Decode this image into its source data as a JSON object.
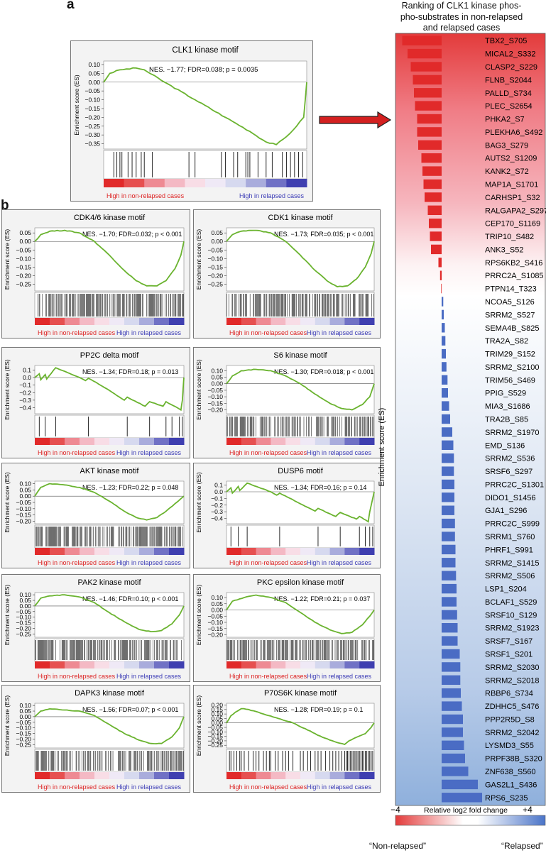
{
  "panel_labels": {
    "a": "a",
    "b": "b"
  },
  "gsea_common": {
    "ylabel": "Enrichment score (ES)",
    "left_label": "High in non-relapsed cases",
    "right_label": "High in relapsed cases"
  },
  "ranking": {
    "title_lines": [
      "Ranking of CLK1 kinase phos-",
      "pho-substrates in non-relapsed",
      "and relapsed cases"
    ],
    "ylabel": "Enrichment score (ES)",
    "scale_min": "−4",
    "scale_max": "+4",
    "scale_label": "Relative log2 fold change",
    "bottom_left": "“Non-relapsed”",
    "bottom_right": "“Relapsed”"
  },
  "colors": {
    "curve": "#6ab32f",
    "red": "#e12a2a",
    "blue": "#4a6cc4",
    "arrow": "#d42020"
  },
  "chart_data": [
    {
      "type": "line",
      "title": "CLK1 kinase motif",
      "annotation": "NES. −1.77; FDR=0.038; p = 0.0035",
      "nes": "NES. −1.77",
      "fdr": "FDR=0.038",
      "p": "0.0035",
      "p_rel": "=",
      "ylim": [
        -0.38,
        0.12
      ],
      "yticks": [
        "0.10",
        "0.05",
        "0.00",
        "−0.05",
        "−0.10",
        "−0.15",
        "−0.20",
        "−0.25",
        "−0.30",
        "−0.35"
      ],
      "ytick_values": [
        0.1,
        0.05,
        0,
        -0.05,
        -0.1,
        -0.15,
        -0.2,
        -0.25,
        -0.3,
        -0.35
      ],
      "curve": [
        [
          0,
          0
        ],
        [
          0.03,
          0.05
        ],
        [
          0.08,
          0.07
        ],
        [
          0.16,
          0.08
        ],
        [
          0.2,
          0.07
        ],
        [
          0.3,
          0
        ],
        [
          0.45,
          -0.1
        ],
        [
          0.6,
          -0.2
        ],
        [
          0.72,
          -0.28
        ],
        [
          0.8,
          -0.34
        ],
        [
          0.85,
          -0.355
        ],
        [
          0.9,
          -0.31
        ],
        [
          0.95,
          -0.25
        ],
        [
          0.985,
          -0.2
        ],
        [
          1,
          0
        ]
      ],
      "hits": [
        0.05,
        0.065,
        0.08,
        0.09,
        0.12,
        0.14,
        0.16,
        0.185,
        0.2,
        0.24,
        0.42,
        0.45,
        0.58,
        0.6,
        0.64,
        0.66,
        0.7,
        0.71,
        0.72,
        0.76,
        0.8,
        0.83,
        0.88,
        0.9,
        0.92,
        0.94,
        0.96,
        0.98
      ]
    },
    {
      "type": "line",
      "title": "CDK4/6 kinase motif",
      "annotation": "NES. −1.70; FDR=0.032; p < 0.001",
      "nes": "NES. −1.70",
      "fdr": "FDR=0.032",
      "p": "0.001",
      "p_rel": "<",
      "ylim": [
        -0.29,
        0.08
      ],
      "yticks": [
        "0.05",
        "0.00",
        "−0.05",
        "−0.10",
        "−0.15",
        "−0.20",
        "−0.25"
      ],
      "ytick_values": [
        0.05,
        0,
        -0.05,
        -0.1,
        -0.15,
        -0.2,
        -0.25
      ],
      "curve": [
        [
          0,
          0
        ],
        [
          0.04,
          0.04
        ],
        [
          0.1,
          0.06
        ],
        [
          0.2,
          0.065
        ],
        [
          0.3,
          0.05
        ],
        [
          0.4,
          0
        ],
        [
          0.5,
          -0.08
        ],
        [
          0.6,
          -0.17
        ],
        [
          0.68,
          -0.23
        ],
        [
          0.75,
          -0.26
        ],
        [
          0.82,
          -0.26
        ],
        [
          0.88,
          -0.23
        ],
        [
          0.94,
          -0.16
        ],
        [
          0.98,
          -0.08
        ],
        [
          1,
          0
        ]
      ],
      "hits_density": "dense"
    },
    {
      "type": "line",
      "title": "CDK1 kinase motif",
      "annotation": "NES. −1.73; FDR=0.035; p < 0.001",
      "nes": "NES. −1.73",
      "fdr": "FDR=0.035",
      "p": "0.001",
      "p_rel": "<",
      "ylim": [
        -0.29,
        0.08
      ],
      "yticks": [
        "0.05",
        "0.00",
        "−0.05",
        "−0.10",
        "−0.15",
        "−0.20",
        "−0.25"
      ],
      "ytick_values": [
        0.05,
        0,
        -0.05,
        -0.1,
        -0.15,
        -0.2,
        -0.25
      ],
      "curve": [
        [
          0,
          0
        ],
        [
          0.04,
          0.04
        ],
        [
          0.1,
          0.06
        ],
        [
          0.2,
          0.065
        ],
        [
          0.3,
          0.05
        ],
        [
          0.4,
          0
        ],
        [
          0.5,
          -0.08
        ],
        [
          0.6,
          -0.17
        ],
        [
          0.68,
          -0.23
        ],
        [
          0.75,
          -0.265
        ],
        [
          0.82,
          -0.26
        ],
        [
          0.88,
          -0.22
        ],
        [
          0.94,
          -0.15
        ],
        [
          0.98,
          -0.07
        ],
        [
          1,
          0
        ]
      ],
      "hits_density": "dense"
    },
    {
      "type": "line",
      "title": "PP2C delta  motif",
      "annotation": "NES. −1.34; FDR=0.18; p = 0.013",
      "nes": "NES. −1.34",
      "fdr": "FDR=0.18",
      "p": "0.013",
      "p_rel": "=",
      "ylim": [
        -0.48,
        0.16
      ],
      "yticks": [
        "0.1",
        "0.0",
        "−0.1",
        "−0.2",
        "−0.3",
        "−0.4"
      ],
      "ytick_values": [
        0.1,
        0,
        -0.1,
        -0.2,
        -0.3,
        -0.4
      ],
      "curve": [
        [
          0,
          0
        ],
        [
          0.03,
          0.05
        ],
        [
          0.04,
          -0.03
        ],
        [
          0.07,
          0.04
        ],
        [
          0.08,
          -0.02
        ],
        [
          0.14,
          0.13
        ],
        [
          0.3,
          0
        ],
        [
          0.34,
          -0.04
        ],
        [
          0.36,
          -0.01
        ],
        [
          0.5,
          -0.17
        ],
        [
          0.6,
          -0.3
        ],
        [
          0.62,
          -0.26
        ],
        [
          0.74,
          -0.38
        ],
        [
          0.77,
          -0.32
        ],
        [
          0.86,
          -0.38
        ],
        [
          0.88,
          -0.32
        ],
        [
          0.98,
          -0.43
        ],
        [
          0.99,
          -0.3
        ],
        [
          1,
          0
        ]
      ],
      "hits": [
        0.03,
        0.07,
        0.14,
        0.36,
        0.62,
        0.77,
        0.88,
        0.92,
        0.97,
        0.99
      ]
    },
    {
      "type": "line",
      "title": "S6 kinase motif",
      "annotation": "NES. −1.30; FDR=0.018; p < 0.001",
      "nes": "NES. −1.30",
      "fdr": "FDR=0.018",
      "p": "0.001",
      "p_rel": "<",
      "ylim": [
        -0.23,
        0.14
      ],
      "yticks": [
        "0.10",
        "0.05",
        "0.00",
        "−0.05",
        "−0.10",
        "−0.15",
        "−0.20"
      ],
      "ytick_values": [
        0.1,
        0.05,
        0,
        -0.05,
        -0.1,
        -0.15,
        -0.2
      ],
      "curve": [
        [
          0,
          0
        ],
        [
          0.04,
          0.06
        ],
        [
          0.1,
          0.1
        ],
        [
          0.2,
          0.11
        ],
        [
          0.3,
          0.1
        ],
        [
          0.4,
          0.06
        ],
        [
          0.5,
          0
        ],
        [
          0.6,
          -0.08
        ],
        [
          0.7,
          -0.15
        ],
        [
          0.78,
          -0.19
        ],
        [
          0.85,
          -0.2
        ],
        [
          0.92,
          -0.16
        ],
        [
          0.97,
          -0.1
        ],
        [
          1,
          0
        ]
      ],
      "hits_density": "dense"
    },
    {
      "type": "line",
      "title": "AKT kinase motif",
      "annotation": "NES. −1.23; FDR=0.22; p = 0.048",
      "nes": "NES. −1.23",
      "fdr": "FDR=0.22",
      "p": "0.048",
      "p_rel": "=",
      "ylim": [
        -0.22,
        0.12
      ],
      "yticks": [
        "0.10",
        "0.05",
        "0.00",
        "−0.05",
        "−0.10",
        "−0.15",
        "−0.20"
      ],
      "ytick_values": [
        0.1,
        0.05,
        0,
        -0.05,
        -0.1,
        -0.15,
        -0.2
      ],
      "curve": [
        [
          0,
          0
        ],
        [
          0.04,
          0.07
        ],
        [
          0.1,
          0.1
        ],
        [
          0.2,
          0.09
        ],
        [
          0.3,
          0.07
        ],
        [
          0.4,
          0.03
        ],
        [
          0.5,
          -0.04
        ],
        [
          0.6,
          -0.12
        ],
        [
          0.68,
          -0.17
        ],
        [
          0.75,
          -0.19
        ],
        [
          0.82,
          -0.17
        ],
        [
          0.88,
          -0.12
        ],
        [
          0.94,
          -0.06
        ],
        [
          0.98,
          -0.02
        ],
        [
          1,
          0
        ]
      ],
      "hits_density": "dense"
    },
    {
      "type": "line",
      "title": "DUSP6 motif",
      "annotation": "NES. −1.34; FDR=0.16; p = 0.14",
      "nes": "NES. −1.34",
      "fdr": "FDR=0.16",
      "p": "0.14",
      "p_rel": "=",
      "ylim": [
        -0.48,
        0.16
      ],
      "yticks": [
        "0.1",
        "0.0",
        "−0.1",
        "−0.2",
        "−0.3",
        "−0.4"
      ],
      "ytick_values": [
        0.1,
        0,
        -0.1,
        -0.2,
        -0.3,
        -0.4
      ],
      "curve": [
        [
          0,
          0
        ],
        [
          0.03,
          0.06
        ],
        [
          0.04,
          -0.02
        ],
        [
          0.08,
          0.08
        ],
        [
          0.09,
          0.02
        ],
        [
          0.14,
          0.13
        ],
        [
          0.3,
          0
        ],
        [
          0.34,
          -0.05
        ],
        [
          0.36,
          -0.02
        ],
        [
          0.5,
          -0.18
        ],
        [
          0.6,
          -0.29
        ],
        [
          0.62,
          -0.25
        ],
        [
          0.74,
          -0.37
        ],
        [
          0.77,
          -0.31
        ],
        [
          0.88,
          -0.41
        ],
        [
          0.9,
          -0.37
        ],
        [
          0.96,
          -0.45
        ],
        [
          0.97,
          -0.3
        ],
        [
          1,
          0
        ]
      ],
      "hits": [
        0.03,
        0.08,
        0.14,
        0.36,
        0.62,
        0.77,
        0.9,
        0.94,
        0.97,
        0.99
      ]
    },
    {
      "type": "line",
      "title": "PAK2 kinase motif",
      "annotation": "NES. −1.46; FDR=0.10; p < 0.001",
      "nes": "NES. −1.46",
      "fdr": "FDR=0.10",
      "p": "0.001",
      "p_rel": "<",
      "ylim": [
        -0.28,
        0.12
      ],
      "yticks": [
        "0.10",
        "0.05",
        "0.00",
        "−0.05",
        "−0.10",
        "−0.15",
        "−0.20",
        "−0.25"
      ],
      "ytick_values": [
        0.1,
        0.05,
        0,
        -0.05,
        -0.1,
        -0.15,
        -0.2,
        -0.25
      ],
      "curve": [
        [
          0,
          0
        ],
        [
          0.04,
          0.07
        ],
        [
          0.1,
          0.09
        ],
        [
          0.2,
          0.1
        ],
        [
          0.3,
          0.08
        ],
        [
          0.4,
          0.03
        ],
        [
          0.5,
          -0.06
        ],
        [
          0.6,
          -0.14
        ],
        [
          0.7,
          -0.21
        ],
        [
          0.78,
          -0.23
        ],
        [
          0.85,
          -0.22
        ],
        [
          0.92,
          -0.16
        ],
        [
          0.97,
          -0.08
        ],
        [
          1,
          0
        ]
      ],
      "hits_density": "dense"
    },
    {
      "type": "line",
      "title": "PKC epsilon kinase motif",
      "annotation": "NES. −1.22; FDR=0.21; p = 0.037",
      "nes": "NES. −1.22",
      "fdr": "FDR=0.21",
      "p": "0.037",
      "p_rel": "=",
      "ylim": [
        -0.22,
        0.14
      ],
      "yticks": [
        "0.10",
        "0.05",
        "0.00",
        "−0.05",
        "−0.10",
        "−0.15",
        "−0.20"
      ],
      "ytick_values": [
        0.1,
        0.05,
        0,
        -0.05,
        -0.1,
        -0.15,
        -0.2
      ],
      "curve": [
        [
          0,
          0
        ],
        [
          0.04,
          0.07
        ],
        [
          0.12,
          0.1
        ],
        [
          0.2,
          0.12
        ],
        [
          0.3,
          0.1
        ],
        [
          0.4,
          0.06
        ],
        [
          0.5,
          -0.02
        ],
        [
          0.6,
          -0.1
        ],
        [
          0.7,
          -0.16
        ],
        [
          0.78,
          -0.19
        ],
        [
          0.85,
          -0.18
        ],
        [
          0.92,
          -0.12
        ],
        [
          0.97,
          -0.05
        ],
        [
          1,
          0
        ]
      ],
      "hits_density": "dense"
    },
    {
      "type": "line",
      "title": "DAPK3 kinase motif",
      "annotation": "NES. −1.56; FDR=0.07; p < 0.001",
      "nes": "NES. −1.56",
      "fdr": "FDR=0.07",
      "p": "0.001",
      "p_rel": "<",
      "ylim": [
        -0.28,
        0.12
      ],
      "yticks": [
        "0.10",
        "0.05",
        "0.00",
        "−0.05",
        "−0.10",
        "−0.15",
        "−0.20",
        "−0.25"
      ],
      "ytick_values": [
        0.1,
        0.05,
        0,
        -0.05,
        -0.1,
        -0.15,
        -0.2,
        -0.25
      ],
      "curve": [
        [
          0,
          0
        ],
        [
          0.04,
          0.05
        ],
        [
          0.1,
          0.07
        ],
        [
          0.2,
          0.06
        ],
        [
          0.3,
          0.05
        ],
        [
          0.4,
          0.01
        ],
        [
          0.5,
          -0.07
        ],
        [
          0.6,
          -0.15
        ],
        [
          0.7,
          -0.21
        ],
        [
          0.78,
          -0.24
        ],
        [
          0.85,
          -0.24
        ],
        [
          0.92,
          -0.18
        ],
        [
          0.97,
          -0.1
        ],
        [
          1,
          0
        ]
      ],
      "hits_density": "dense"
    },
    {
      "type": "line",
      "title": "P70S6K kinase motif",
      "annotation": "NES. −1.28; FDR=0.19; p = 0.1",
      "nes": "NES. −1.28",
      "fdr": "FDR=0.19",
      "p": "0.1",
      "p_rel": "=",
      "ylim": [
        -0.28,
        0.22
      ],
      "yticks": [
        "0.20",
        "0.15",
        "0.10",
        "0.05",
        "0.00",
        "−0.05",
        "−0.10",
        "−0.15",
        "−0.20",
        "−0.25"
      ],
      "ytick_values": [
        0.2,
        0.15,
        0.1,
        0.05,
        0,
        -0.05,
        -0.1,
        -0.15,
        -0.2,
        -0.25
      ],
      "curve": [
        [
          0,
          0
        ],
        [
          0.03,
          0.08
        ],
        [
          0.06,
          0.12
        ],
        [
          0.1,
          0.16
        ],
        [
          0.15,
          0.15
        ],
        [
          0.25,
          0.1
        ],
        [
          0.35,
          0.05
        ],
        [
          0.45,
          0
        ],
        [
          0.55,
          -0.08
        ],
        [
          0.65,
          -0.16
        ],
        [
          0.75,
          -0.22
        ],
        [
          0.8,
          -0.24
        ],
        [
          0.83,
          -0.2
        ],
        [
          0.88,
          -0.16
        ],
        [
          0.94,
          -0.12
        ],
        [
          0.98,
          -0.05
        ],
        [
          1,
          0
        ]
      ],
      "hits": [
        0.02,
        0.03,
        0.05,
        0.07,
        0.09,
        0.1,
        0.12,
        0.15,
        0.18,
        0.2,
        0.22,
        0.25,
        0.27,
        0.29,
        0.3,
        0.33,
        0.35,
        0.38,
        0.4,
        0.42,
        0.45,
        0.5,
        0.52,
        0.55,
        0.57,
        0.6,
        0.62,
        0.64,
        0.67,
        0.7,
        0.72,
        0.74,
        0.76,
        0.78,
        0.8,
        0.81,
        0.82,
        0.83,
        0.84,
        0.85,
        0.86,
        0.87,
        0.88,
        0.89,
        0.9,
        0.91,
        0.92,
        0.93,
        0.94,
        0.95,
        0.96,
        0.97,
        0.98,
        0.99
      ]
    },
    {
      "type": "bar",
      "title": "Ranking of CLK1 kinase phospho-substrates in non-relapsed and relapsed cases",
      "scale_range": [
        -4,
        4
      ],
      "categories": [
        "TBX2_S705",
        "MICAL2_S332",
        "CLASP2_S229",
        "FLNB_S2044",
        "PALLD_S734",
        "PLEC_S2654",
        "PHKA2_S7",
        "PLEKHA6_S492",
        "BAG3_S279",
        "AUTS2_S1209",
        "KANK2_S72",
        "MAP1A_S1701",
        "CARHSP1_S32",
        "RALGAPA2_S297",
        "CEP170_S1169",
        "TRIP10_S482",
        "ANK3_S52",
        "RPS6KB2_S416",
        "PRRC2A_S1085",
        "PTPN14_T323",
        "NCOA5_S126",
        "SRRM2_S527",
        "SEMA4B_S825",
        "TRA2A_S82",
        "TRIM29_S152",
        "SRRM2_S2100",
        "TRIM56_S469",
        "PPIG_S529",
        "MIA3_S1686",
        "TRA2B_S85",
        "SRRM2_S1970",
        "EMD_S136",
        "SRRM2_S536",
        "SRSF6_S297",
        "PRRC2C_S1301",
        "DIDO1_S1456",
        "GJA1_S296",
        "PRRC2C_S999",
        "SRRM1_S760",
        "PHRF1_S991",
        "SRRM2_S1415",
        "SRRM2_S506",
        "LSP1_S204",
        "BCLAF1_S529",
        "SRSF10_S129",
        "SRRM2_S1923",
        "SRSF7_S167",
        "SRSF1_S201",
        "SRRM2_S2030",
        "SRRM2_S2018",
        "RBBP6_S734",
        "ZDHHC5_S476",
        "PPP2R5D_S8",
        "SRRM2_S2042",
        "LYSMD3_S55",
        "PRPF38B_S320",
        "ZNF638_S560",
        "GAS2L1_S436",
        "RPS6_S235"
      ],
      "values": [
        -3.7,
        -3.2,
        -2.9,
        -2.7,
        -2.6,
        -2.5,
        -2.3,
        -2.3,
        -2.2,
        -1.9,
        -1.8,
        -1.7,
        -1.6,
        -1.3,
        -1.2,
        -1.1,
        -1.0,
        -0.3,
        -0.15,
        -0.05,
        0.15,
        0.2,
        0.3,
        0.35,
        0.4,
        0.45,
        0.55,
        0.6,
        0.7,
        0.8,
        1.0,
        1.1,
        1.15,
        1.15,
        1.2,
        1.2,
        1.2,
        1.25,
        1.25,
        1.3,
        1.3,
        1.35,
        1.4,
        1.4,
        1.45,
        1.5,
        1.5,
        1.7,
        1.75,
        1.75,
        1.8,
        1.9,
        2.0,
        2.0,
        2.1,
        2.2,
        2.5,
        3.4,
        3.8
      ]
    }
  ]
}
